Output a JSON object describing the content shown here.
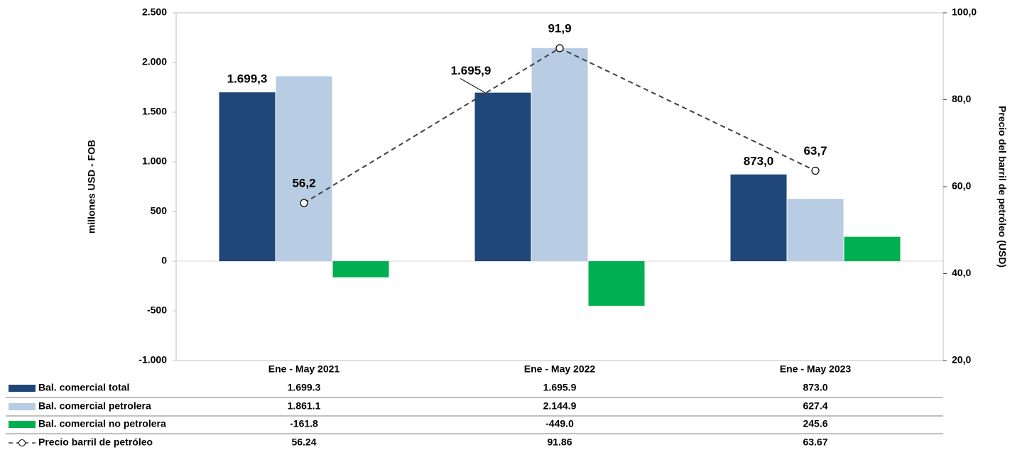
{
  "chart_data": {
    "type": "bar",
    "categories": [
      "Ene - May 2021",
      "Ene - May 2022",
      "Ene - May 2023"
    ],
    "ylabel": "millones USD - FOB",
    "y2label": "Precio del barril de petróleo (USD)",
    "ylim": [
      -1000,
      2500
    ],
    "yticks": [
      {
        "value": -1000,
        "label": "-1.000"
      },
      -500,
      0,
      500,
      {
        "value": 1000,
        "label": "1.000"
      },
      {
        "value": 1500,
        "label": "1.500"
      },
      {
        "value": 2000,
        "label": "2.000"
      },
      {
        "value": 2500,
        "label": "2.500"
      }
    ],
    "y2lim": [
      20,
      100
    ],
    "y2ticks": [
      {
        "value": 20,
        "label": "20,0"
      },
      {
        "value": 40,
        "label": "40,0"
      },
      {
        "value": 60,
        "label": "60,0"
      },
      {
        "value": 80,
        "label": "80,0"
      },
      {
        "value": 100,
        "label": "100,0"
      }
    ],
    "series": [
      {
        "name": "Bal. comercial total",
        "type": "bar",
        "color": "#1f4778",
        "values": [
          1699.3,
          1695.9,
          873.0
        ],
        "value_labels": [
          "1.699,3",
          "1.695,9",
          "873,0"
        ],
        "table_labels": [
          "1.699.3",
          "1.695.9",
          "873.0"
        ]
      },
      {
        "name": "Bal. comercial petrolera",
        "type": "bar",
        "color": "#b8cce4",
        "values": [
          1861.1,
          2144.9,
          627.4
        ],
        "table_labels": [
          "1.861.1",
          "2.144.9",
          "627.4"
        ]
      },
      {
        "name": "Bal. comercial no petrolera",
        "type": "bar",
        "color": "#00b050",
        "values": [
          -161.8,
          -449.0,
          245.6
        ],
        "table_labels": [
          "-161.8",
          "-449.0",
          "245.6"
        ]
      },
      {
        "name": "Precio barril de petróleo",
        "type": "line",
        "axis": "y2",
        "color": "#404040",
        "values": [
          56.24,
          91.86,
          63.67
        ],
        "value_labels": [
          "56,2",
          "91,9",
          "63,7"
        ],
        "table_labels": [
          "56.24",
          "91.86",
          "63.67"
        ]
      }
    ]
  }
}
